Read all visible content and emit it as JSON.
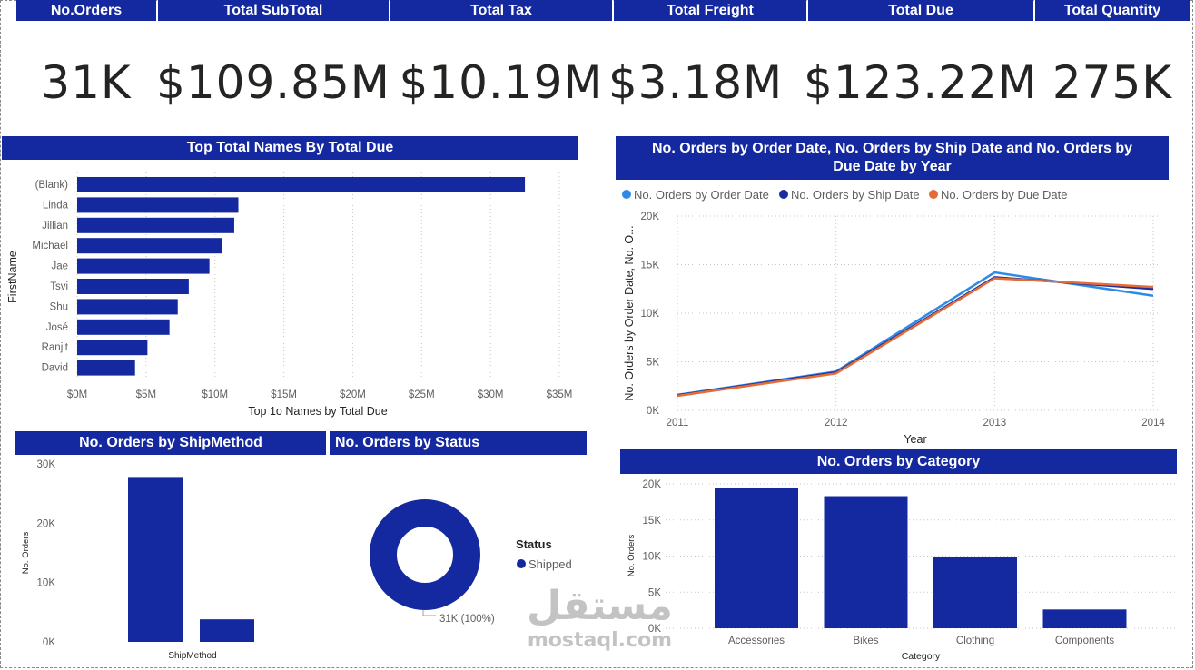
{
  "kpis": [
    {
      "label": "No.Orders",
      "value": "31K"
    },
    {
      "label": "Total SubTotal",
      "value": "$109.85M"
    },
    {
      "label": "Total Tax",
      "value": "$10.19M"
    },
    {
      "label": "Total Freight",
      "value": "$3.18M"
    },
    {
      "label": "Total Due",
      "value": "$123.22M"
    },
    {
      "label": "Total Quantity",
      "value": "275K"
    }
  ],
  "colors": {
    "bar": "#1428a0",
    "order_date": "#2e8ae6",
    "ship_date": "#1a2d9c",
    "due_date": "#e66c37"
  },
  "watermark": {
    "arabic": "مستقل",
    "latin": "mostaql.com"
  },
  "chart_data": [
    {
      "type": "bar",
      "orientation": "horizontal",
      "title": "Top Total Names By Total Due",
      "categories": [
        "(Blank)",
        "Linda",
        "Jillian",
        "Michael",
        "Jae",
        "Tsvi",
        "Shu",
        "José",
        "Ranjit",
        "David"
      ],
      "values": [
        32.5,
        11.7,
        11.4,
        10.5,
        9.6,
        8.1,
        7.3,
        6.7,
        5.1,
        4.2
      ],
      "xlabel": "Top 1o Names by Total Due",
      "ylabel": "FirstName",
      "xlim": [
        0,
        35
      ],
      "x_ticks": [
        "$0M",
        "$5M",
        "$10M",
        "$15M",
        "$20M",
        "$25M",
        "$30M",
        "$35M"
      ],
      "grid": true
    },
    {
      "type": "line",
      "title": "No. Orders by Order Date, No. Orders by Ship Date and No. Orders by Due Date by Year",
      "x": [
        2011,
        2012,
        2013,
        2014
      ],
      "series": [
        {
          "name": "No. Orders by Order Date",
          "values": [
            1600,
            4000,
            14200,
            11800
          ]
        },
        {
          "name": "No. Orders by Ship Date",
          "values": [
            1550,
            3900,
            13700,
            12500
          ]
        },
        {
          "name": "No. Orders by Due Date",
          "values": [
            1500,
            3800,
            13600,
            12700
          ]
        }
      ],
      "xlabel": "Year",
      "ylabel": "No. Orders by Order Date, No. O...",
      "ylim": [
        0,
        20000
      ],
      "y_ticks": [
        "0K",
        "5K",
        "10K",
        "15K",
        "20K"
      ],
      "legend": "top-left",
      "grid": true
    },
    {
      "type": "bar",
      "title": "No. Orders by ShipMethod",
      "values": [
        27800,
        3800
      ],
      "xlabel": "ShipMethod",
      "ylabel": "No. Orders",
      "ylim": [
        0,
        30000
      ],
      "y_ticks": [
        "0K",
        "10K",
        "20K",
        "30K"
      ]
    },
    {
      "type": "pie",
      "title": "No. Orders by Status",
      "legend_title": "Status",
      "slices": [
        {
          "name": "Shipped",
          "value": 31000,
          "label": "31K (100%)"
        }
      ]
    },
    {
      "type": "bar",
      "title": "No. Orders by Category",
      "categories": [
        "Accessories",
        "Bikes",
        "Clothing",
        "Components"
      ],
      "values": [
        19400,
        18300,
        9900,
        2600
      ],
      "xlabel": "Category",
      "ylabel": "No. Orders",
      "ylim": [
        0,
        20000
      ],
      "y_ticks": [
        "0K",
        "5K",
        "10K",
        "15K",
        "20K"
      ],
      "grid": true
    }
  ]
}
